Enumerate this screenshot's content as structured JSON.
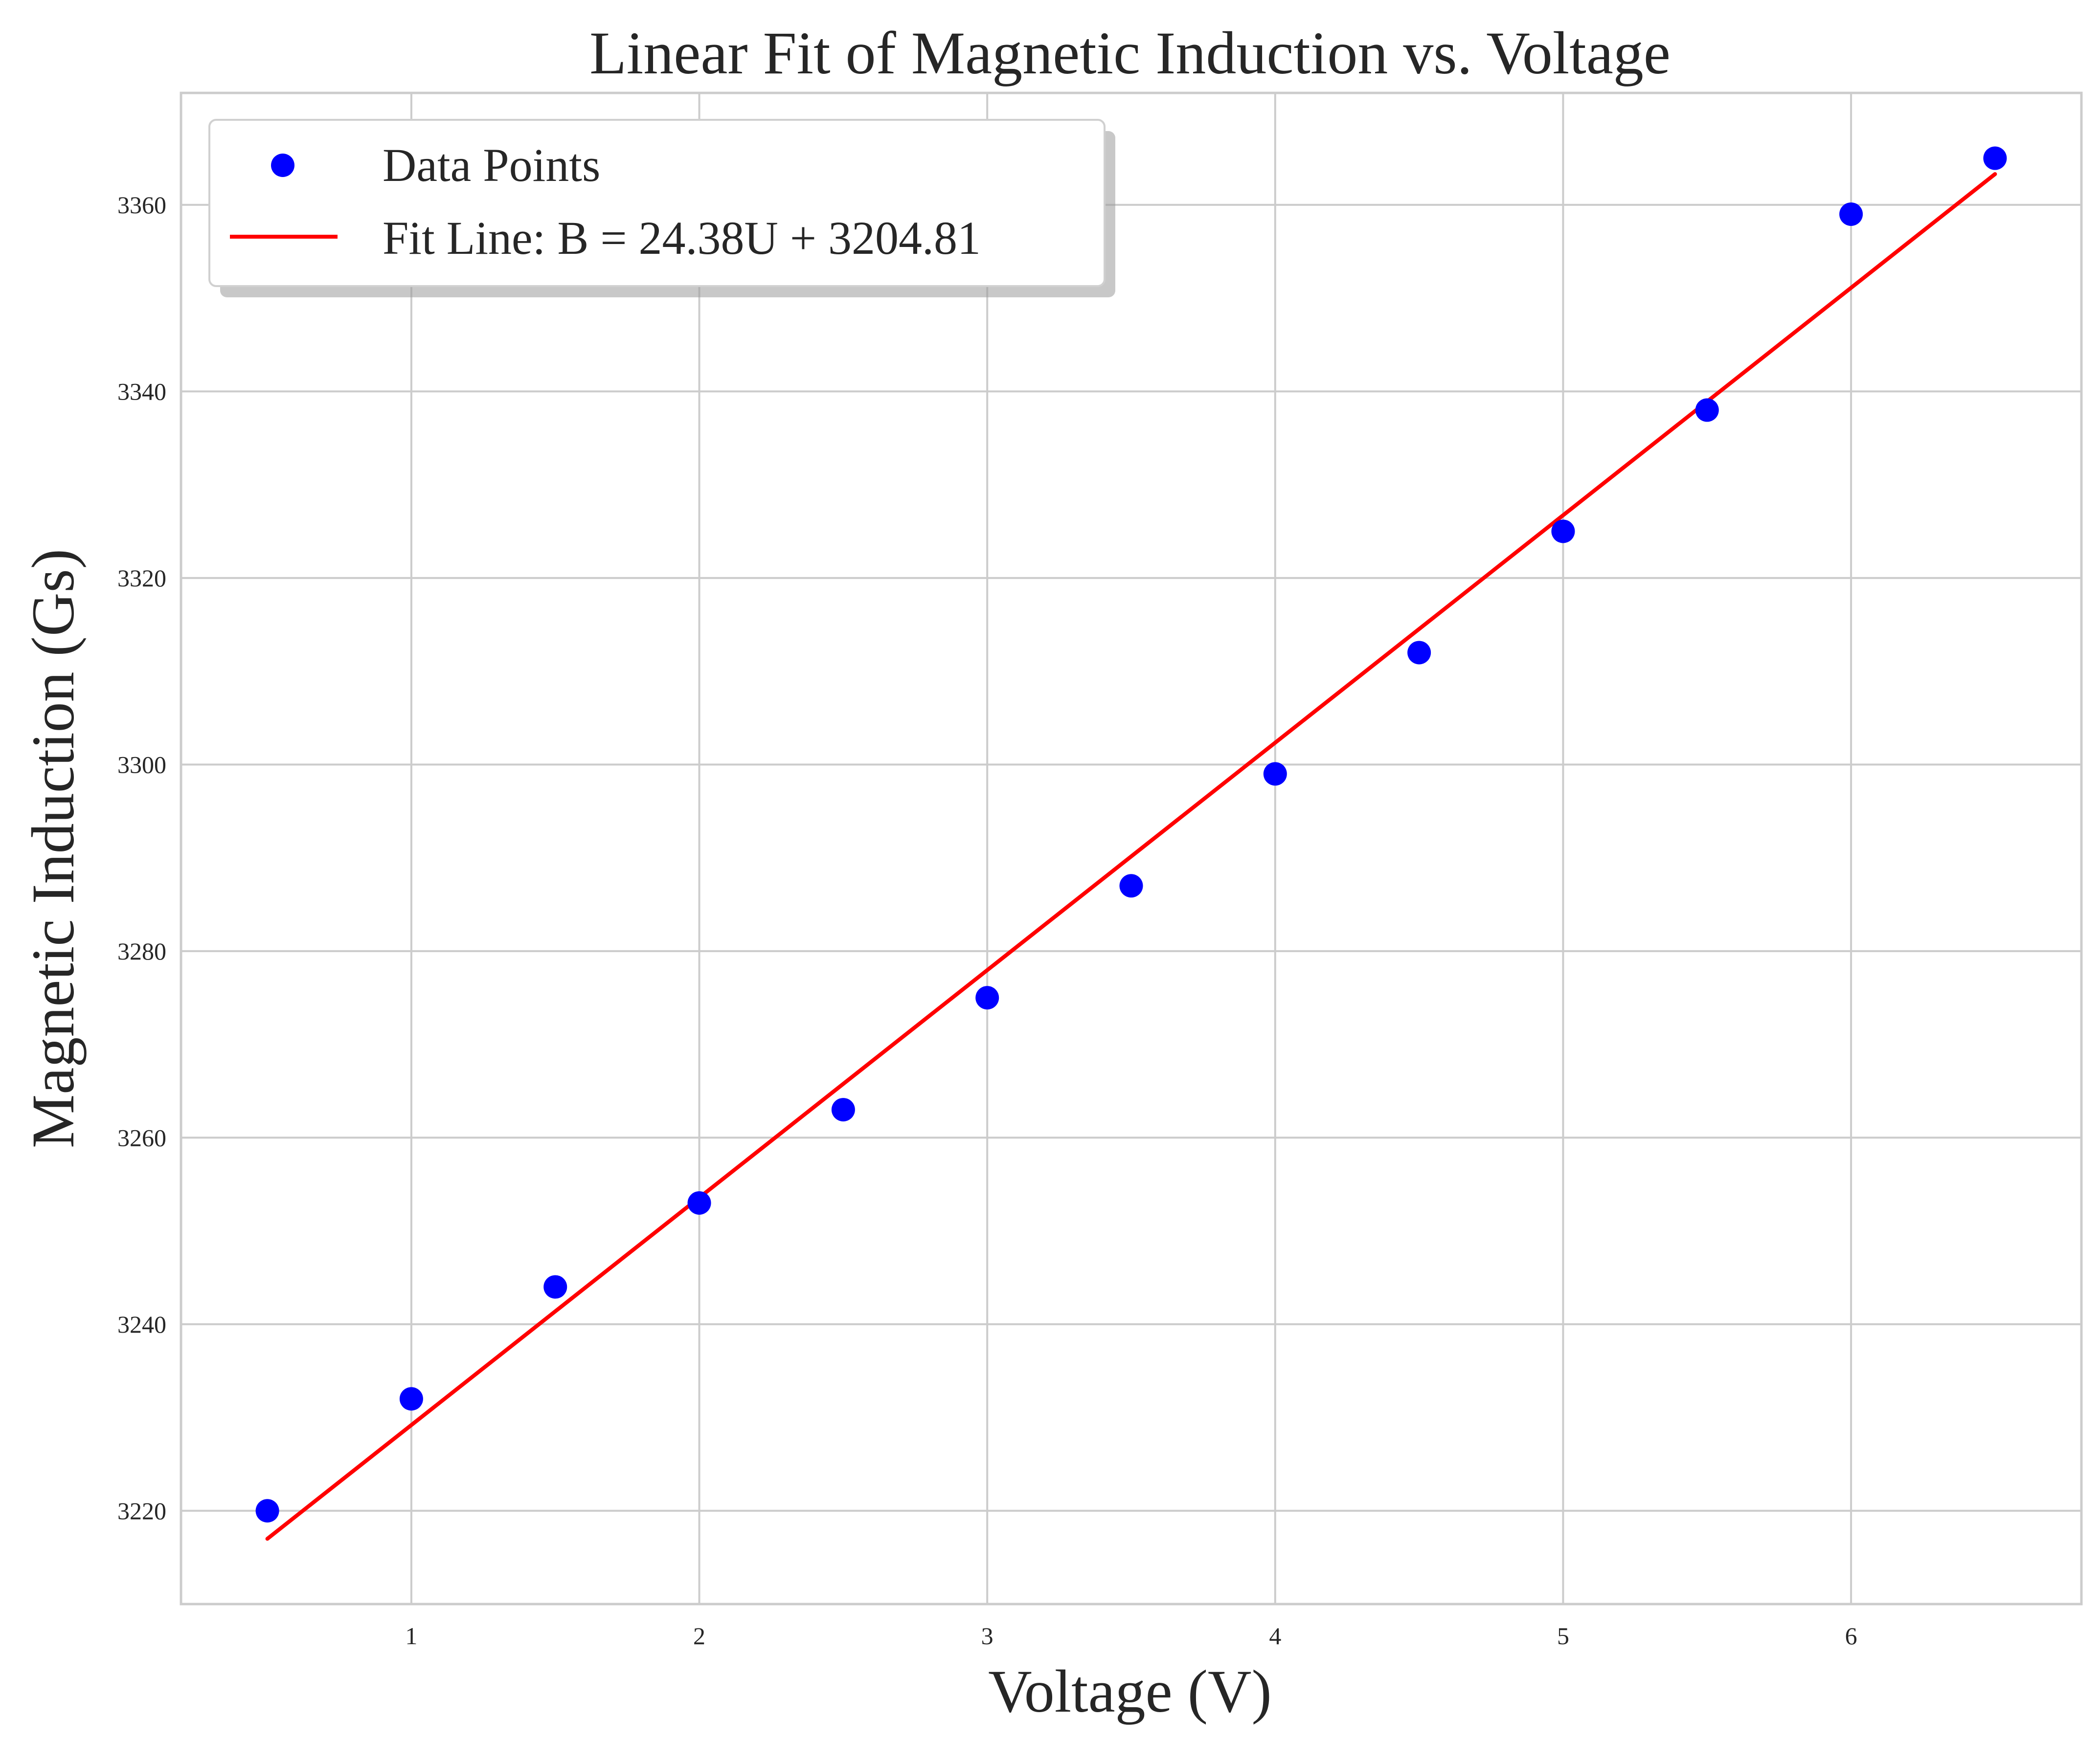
{
  "chart_data": {
    "type": "scatter",
    "title": "Linear Fit of Magnetic Induction vs. Voltage",
    "xlabel": "Voltage (V)",
    "ylabel": "Magnetic Induction (Gs)",
    "xlim": [
      0.2,
      6.8
    ],
    "ylim": [
      3210,
      3372
    ],
    "xticks": [
      1,
      2,
      3,
      4,
      5,
      6
    ],
    "yticks": [
      3220,
      3240,
      3260,
      3280,
      3300,
      3320,
      3340,
      3360
    ],
    "grid": true,
    "legend_position": "top-left",
    "series": [
      {
        "name": "Data Points",
        "kind": "scatter",
        "color": "#0000ff",
        "x": [
          0.5,
          1.0,
          1.5,
          2.0,
          2.5,
          3.0,
          3.5,
          4.0,
          4.5,
          5.0,
          5.5,
          6.0,
          6.5
        ],
        "y": [
          3220,
          3232,
          3244,
          3253,
          3263,
          3275,
          3287,
          3299,
          3312,
          3325,
          3338,
          3359,
          3365
        ]
      },
      {
        "name": "Fit Line: B = 24.38U + 3204.81",
        "kind": "line",
        "color": "#ff0000",
        "x": [
          0.5,
          6.5
        ],
        "y": [
          3217.0,
          3363.3
        ]
      }
    ]
  }
}
